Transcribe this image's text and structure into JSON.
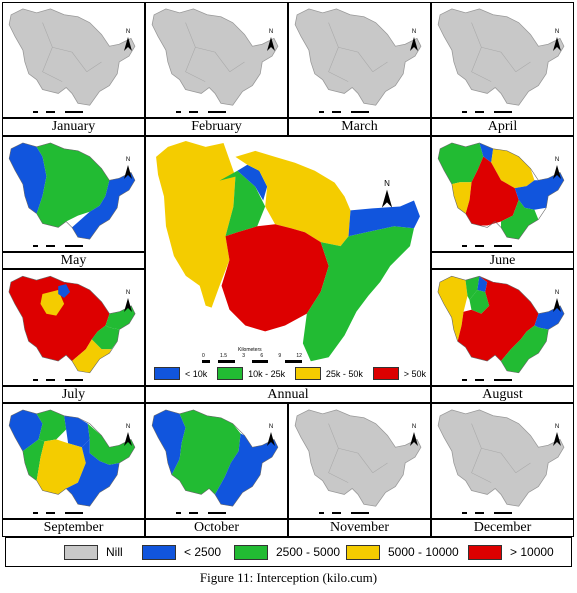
{
  "figure_caption": "Figure 11: Interception (kilo.cum)",
  "months": {
    "jan": "January",
    "feb": "February",
    "mar": "March",
    "apr": "April",
    "may": "May",
    "jun": "June",
    "jul": "July",
    "aug": "August",
    "sep": "September",
    "oct": "October",
    "nov": "November",
    "dec": "December"
  },
  "annual": {
    "label": "Annual",
    "north": "N",
    "scale_title": "Kilometers",
    "scale_ticks": [
      "0",
      "1.5",
      "3",
      "6",
      "9",
      "12"
    ],
    "legend": [
      {
        "label": "< 10k",
        "color": "#1155dd"
      },
      {
        "label": "10k - 25k",
        "color": "#22bb33"
      },
      {
        "label": "25k - 50k",
        "color": "#f4cc00"
      },
      {
        "label": "> 50k",
        "color": "#dd0000"
      }
    ]
  },
  "legend": [
    {
      "label": "Nill",
      "color": "#c8c8c8"
    },
    {
      "label": "< 2500",
      "color": "#1155dd"
    },
    {
      "label": "2500 - 5000",
      "color": "#22bb33"
    },
    {
      "label": "5000 - 10000",
      "color": "#f4cc00"
    },
    {
      "label": "> 10000",
      "color": "#dd0000"
    }
  ],
  "north_label": "N",
  "scale_label": "Kilometers"
}
